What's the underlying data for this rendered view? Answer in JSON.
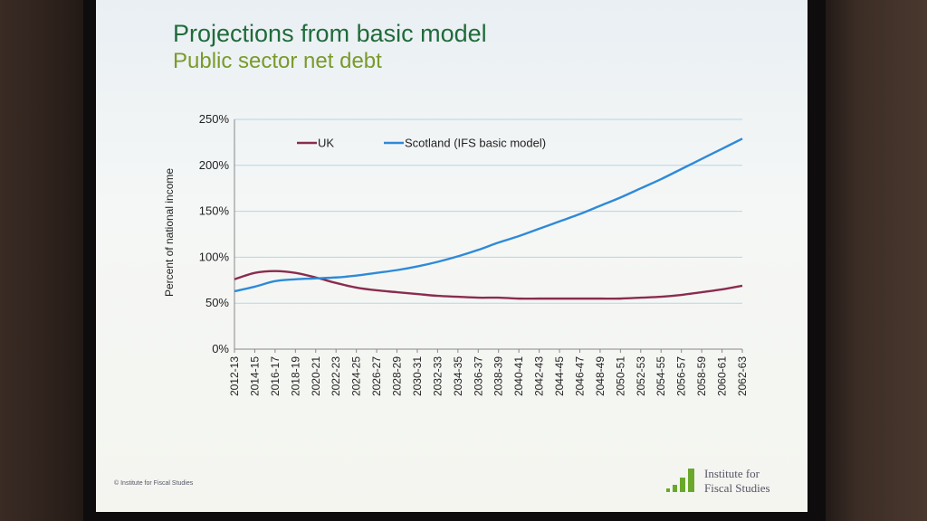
{
  "slide": {
    "title": "Projections from basic model",
    "subtitle": "Public sector net debt",
    "copyright": "© Institute for Fiscal Studies",
    "logo_line1": "Institute for",
    "logo_line2": "Fiscal Studies"
  },
  "colors": {
    "title": "#1f6b3a",
    "subtitle": "#7b9a2a",
    "uk": "#8b2c4f",
    "scotland": "#2e8ad8",
    "logo": "#6aa82c"
  },
  "chart_data": {
    "type": "line",
    "title": "",
    "xlabel": "",
    "ylabel": "Percent of national income",
    "ylim": [
      0,
      250
    ],
    "y_ticks": [
      "0%",
      "50%",
      "100%",
      "150%",
      "200%",
      "250%"
    ],
    "y_tick_values": [
      0,
      50,
      100,
      150,
      200,
      250
    ],
    "grid": true,
    "legend_position": "top",
    "categories": [
      "2012-13",
      "2014-15",
      "2016-17",
      "2018-19",
      "2020-21",
      "2022-23",
      "2024-25",
      "2026-27",
      "2028-29",
      "2030-31",
      "2032-33",
      "2034-35",
      "2036-37",
      "2038-39",
      "2040-41",
      "2042-43",
      "2044-45",
      "2046-47",
      "2048-49",
      "2050-51",
      "2052-53",
      "2054-55",
      "2056-57",
      "2058-59",
      "2060-61",
      "2062-63"
    ],
    "series": [
      {
        "name": "UK",
        "values": [
          76,
          83,
          85,
          83,
          78,
          72,
          67,
          64,
          62,
          60,
          58,
          57,
          56,
          56,
          55,
          55,
          55,
          55,
          55,
          55,
          56,
          57,
          59,
          62,
          65,
          69
        ]
      },
      {
        "name": "Scotland (IFS basic model)",
        "values": [
          63,
          68,
          74,
          76,
          77,
          78,
          80,
          83,
          86,
          90,
          95,
          101,
          108,
          116,
          123,
          131,
          139,
          147,
          156,
          165,
          175,
          185,
          196,
          207,
          218,
          229
        ]
      }
    ]
  }
}
